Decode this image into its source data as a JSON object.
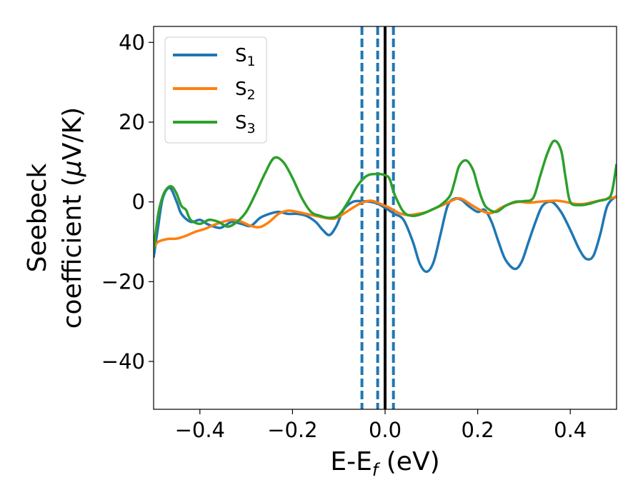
{
  "chart_data": {
    "type": "line",
    "title": "",
    "xlabel": {
      "main": "E-E",
      "sub": "f",
      "rest": " (eV)"
    },
    "ylabel": {
      "line1": "Seebeck",
      "line2_pre": "coefficient  (",
      "mu": "μ",
      "line2_post": "V/K)"
    },
    "xlim": [
      -0.5,
      0.5
    ],
    "ylim": [
      -52,
      44
    ],
    "xticks": [
      -0.4,
      -0.2,
      0.0,
      0.2,
      0.4
    ],
    "xtick_labels": [
      "−0.4",
      "−0.2",
      "0.0",
      "0.2",
      "0.4"
    ],
    "yticks": [
      -40,
      -20,
      0,
      20,
      40
    ],
    "ytick_labels": [
      "−40",
      "−20",
      "0",
      "20",
      "40"
    ],
    "grid": false,
    "legend_position": "top-left",
    "vlines": [
      {
        "x": -0.05,
        "style": "dashed",
        "color": "#1f77b4"
      },
      {
        "x": -0.016,
        "style": "dashed",
        "color": "#1f77b4"
      },
      {
        "x": 0.018,
        "style": "dashed",
        "color": "#1f77b4"
      },
      {
        "x": 0.0,
        "style": "solid",
        "color": "#000000"
      }
    ],
    "series": [
      {
        "name": "S",
        "sub": "1",
        "color": "#1f77b4",
        "x": [
          -0.5,
          -0.49,
          -0.48,
          -0.465,
          -0.45,
          -0.44,
          -0.42,
          -0.4,
          -0.385,
          -0.37,
          -0.355,
          -0.34,
          -0.33,
          -0.31,
          -0.29,
          -0.27,
          -0.25,
          -0.23,
          -0.21,
          -0.19,
          -0.17,
          -0.15,
          -0.135,
          -0.12,
          -0.105,
          -0.09,
          -0.07,
          -0.05,
          -0.03,
          -0.015,
          0.0,
          0.02,
          0.04,
          0.06,
          0.075,
          0.09,
          0.105,
          0.12,
          0.135,
          0.15,
          0.165,
          0.18,
          0.2,
          0.215,
          0.23,
          0.245,
          0.26,
          0.28,
          0.295,
          0.31,
          0.325,
          0.34,
          0.36,
          0.38,
          0.4,
          0.42,
          0.435,
          0.45,
          0.465,
          0.48,
          0.5
        ],
        "y": [
          -14,
          -6,
          1,
          3.5,
          0,
          -3,
          -5,
          -4.5,
          -5.5,
          -6.2,
          -6.5,
          -5.5,
          -5,
          -5.5,
          -6,
          -4,
          -3,
          -2.5,
          -3,
          -3,
          -3.5,
          -5,
          -7,
          -8.3,
          -6,
          -2,
          0,
          0.2,
          0,
          -0.5,
          -1.5,
          -3,
          -4.5,
          -10,
          -15.5,
          -17.5,
          -15,
          -8,
          -1,
          0.8,
          0.5,
          -1,
          -2.5,
          -2,
          -5,
          -10,
          -14.5,
          -16.8,
          -15,
          -10,
          -5,
          -1,
          0,
          -2.5,
          -7,
          -12,
          -14.3,
          -13.5,
          -8,
          -1,
          1.5
        ]
      },
      {
        "name": "S",
        "sub": "2",
        "color": "#ff7f0e",
        "x": [
          -0.5,
          -0.49,
          -0.47,
          -0.45,
          -0.43,
          -0.41,
          -0.39,
          -0.37,
          -0.35,
          -0.33,
          -0.31,
          -0.29,
          -0.27,
          -0.25,
          -0.23,
          -0.21,
          -0.19,
          -0.17,
          -0.15,
          -0.13,
          -0.11,
          -0.09,
          -0.07,
          -0.05,
          -0.03,
          -0.01,
          0.01,
          0.03,
          0.05,
          0.07,
          0.09,
          0.11,
          0.13,
          0.15,
          0.16,
          0.17,
          0.19,
          0.21,
          0.23,
          0.25,
          0.27,
          0.29,
          0.31,
          0.33,
          0.35,
          0.37,
          0.39,
          0.41,
          0.43,
          0.45,
          0.47,
          0.49,
          0.5
        ],
        "y": [
          -11.5,
          -10,
          -9.3,
          -9.2,
          -8.5,
          -7.5,
          -6.8,
          -5.8,
          -5,
          -4.5,
          -5,
          -6,
          -6.3,
          -5,
          -3,
          -2.2,
          -2.5,
          -3,
          -3.5,
          -4,
          -4.2,
          -3,
          -1.5,
          -0.2,
          0.3,
          -0.5,
          -1.5,
          -2.8,
          -3.3,
          -3,
          -2.5,
          -1.5,
          -0.5,
          0.6,
          0.9,
          0.5,
          -1,
          -2.3,
          -2.8,
          -1.5,
          -0.5,
          0,
          -0.2,
          0,
          0.2,
          0.3,
          0,
          -0.5,
          -0.5,
          0,
          0.5,
          1,
          1.3
        ]
      },
      {
        "name": "S",
        "sub": "3",
        "color": "#2ca02c",
        "x": [
          -0.5,
          -0.49,
          -0.48,
          -0.47,
          -0.46,
          -0.45,
          -0.44,
          -0.43,
          -0.42,
          -0.4,
          -0.38,
          -0.36,
          -0.34,
          -0.32,
          -0.3,
          -0.28,
          -0.26,
          -0.24,
          -0.22,
          -0.2,
          -0.18,
          -0.16,
          -0.14,
          -0.12,
          -0.1,
          -0.08,
          -0.06,
          -0.04,
          -0.02,
          0.0,
          0.01,
          0.02,
          0.04,
          0.06,
          0.08,
          0.1,
          0.12,
          0.14,
          0.15,
          0.16,
          0.175,
          0.19,
          0.2,
          0.21,
          0.22,
          0.24,
          0.26,
          0.28,
          0.3,
          0.32,
          0.335,
          0.35,
          0.365,
          0.38,
          0.39,
          0.4,
          0.42,
          0.44,
          0.46,
          0.48,
          0.49,
          0.5
        ],
        "y": [
          -12,
          -3,
          1.5,
          3.5,
          3.8,
          2,
          -1,
          -2,
          -4.5,
          -5.5,
          -4.5,
          -5,
          -6.2,
          -5,
          -2.5,
          2,
          7,
          11,
          10,
          6,
          1,
          -2.5,
          -3.5,
          -4,
          -3.3,
          0,
          4,
          6.5,
          7,
          6.7,
          5.7,
          2,
          -2.5,
          -3.5,
          -3,
          -2,
          -0.8,
          1.5,
          5,
          9,
          10.4,
          8,
          4,
          0.5,
          -1.5,
          -2.5,
          -1,
          0,
          0.2,
          1,
          6.5,
          12,
          15.3,
          13,
          6,
          0,
          -0.8,
          -0.5,
          0.2,
          0.8,
          2.5,
          9.5
        ]
      }
    ]
  }
}
